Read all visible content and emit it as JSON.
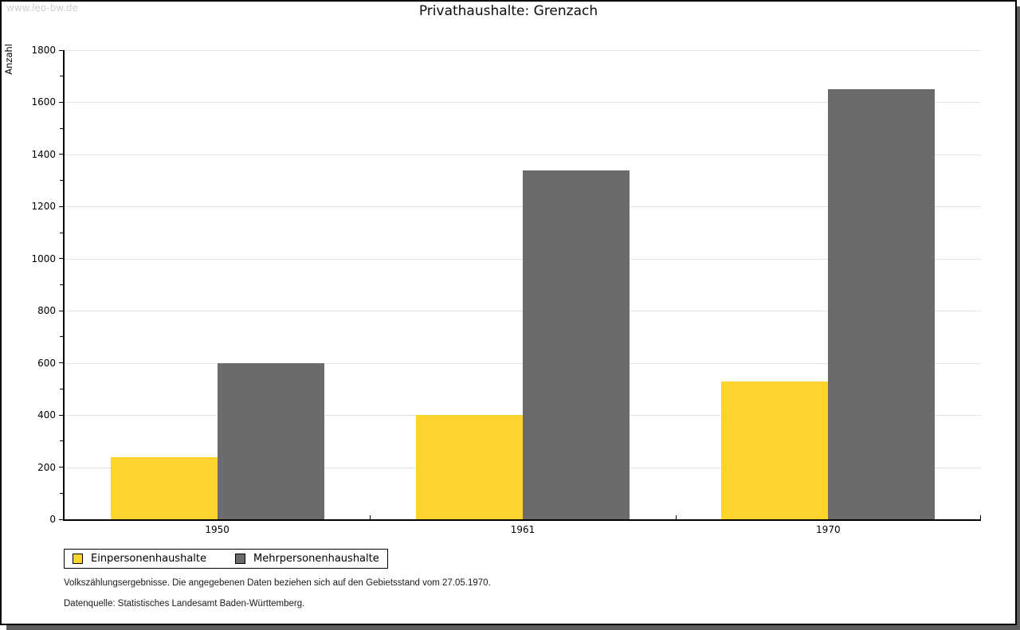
{
  "page": {
    "watermark": "www.leo-bw.de",
    "notes": {
      "line1": "Volkszählungsergebnisse. Die angegebenen Daten beziehen sich auf den Gebietsstand vom 27.05.1970.",
      "line2": "Datenquelle: Statistisches Landesamt Baden-Württemberg."
    }
  },
  "colors": {
    "shadow": "#5e5e5e",
    "gridline": "#e2e2e2",
    "axis": "#000000",
    "watermark": "#cfcfcf"
  },
  "chart_data": {
    "type": "bar",
    "title": "Privathaushalte: Grenzach",
    "xlabel": "",
    "ylabel": "Anzahl",
    "categories": [
      "1950",
      "1961",
      "1970"
    ],
    "series": [
      {
        "name": "Einpersonenhaushalte",
        "color": "#FCD42D",
        "values": [
          238,
          400,
          530
        ]
      },
      {
        "name": "Mehrpersonenhaushalte",
        "color": "#6B6B6B",
        "values": [
          600,
          1340,
          1650
        ]
      }
    ],
    "ylim": [
      0,
      1800
    ],
    "y_major_step": 200,
    "y_minor_step": 100,
    "grid": true,
    "legend_position": "bottom-left"
  }
}
